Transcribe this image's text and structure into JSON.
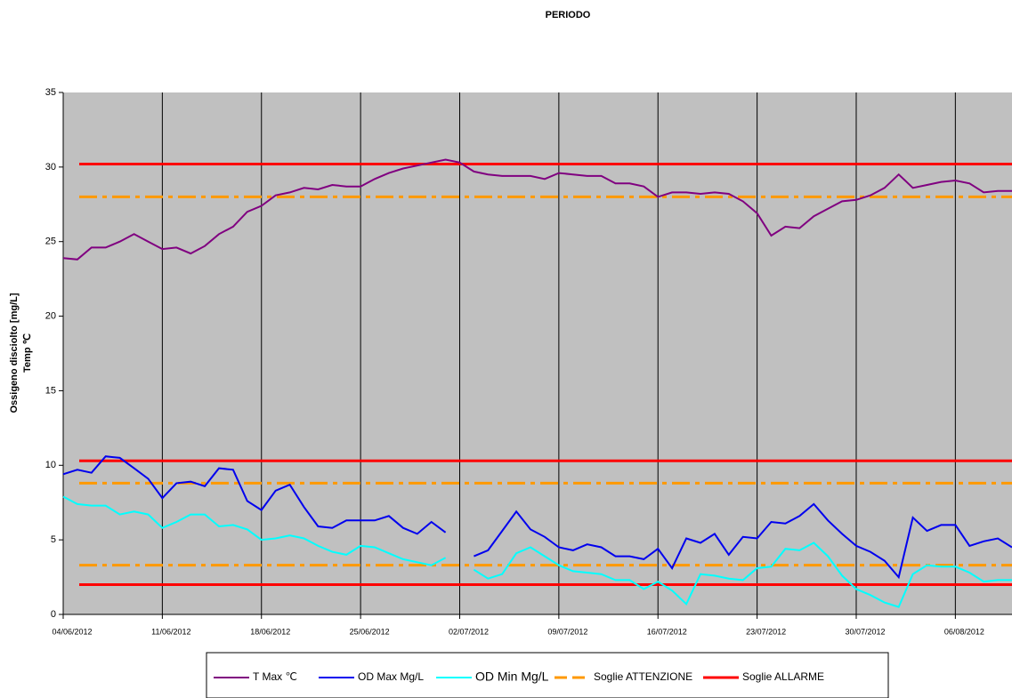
{
  "chart_data": {
    "type": "line",
    "title": "PERIODO",
    "ylabel": [
      "Ossigeno disciolto [mg/L]",
      "Temp ℃"
    ],
    "x": [
      "04/06/2012",
      "05/06/2012",
      "06/06/2012",
      "07/06/2012",
      "08/06/2012",
      "09/06/2012",
      "10/06/2012",
      "11/06/2012",
      "12/06/2012",
      "13/06/2012",
      "14/06/2012",
      "15/06/2012",
      "16/06/2012",
      "17/06/2012",
      "18/06/2012",
      "19/06/2012",
      "20/06/2012",
      "21/06/2012",
      "22/06/2012",
      "23/06/2012",
      "24/06/2012",
      "25/06/2012",
      "26/06/2012",
      "27/06/2012",
      "28/06/2012",
      "29/06/2012",
      "30/06/2012",
      "01/07/2012",
      "02/07/2012",
      "03/07/2012",
      "04/07/2012",
      "05/07/2012",
      "06/07/2012",
      "07/07/2012",
      "08/07/2012",
      "09/07/2012",
      "10/07/2012",
      "11/07/2012",
      "12/07/2012",
      "13/07/2012",
      "14/07/2012",
      "15/07/2012",
      "16/07/2012",
      "17/07/2012",
      "18/07/2012",
      "19/07/2012",
      "20/07/2012",
      "21/07/2012",
      "22/07/2012",
      "23/07/2012",
      "24/07/2012",
      "25/07/2012",
      "26/07/2012",
      "27/07/2012",
      "28/07/2012",
      "29/07/2012",
      "30/07/2012",
      "31/07/2012",
      "01/08/2012",
      "02/08/2012",
      "03/08/2012",
      "04/08/2012",
      "05/08/2012",
      "06/08/2012",
      "07/08/2012",
      "08/08/2012",
      "09/08/2012",
      "10/08/2012"
    ],
    "xlim": [
      "04/06/2012",
      "10/08/2012"
    ],
    "xticks": [
      "04/06/2012",
      "11/06/2012",
      "18/06/2012",
      "25/06/2012",
      "02/07/2012",
      "09/07/2012",
      "16/07/2012",
      "23/07/2012",
      "30/07/2012",
      "06/08/2012"
    ],
    "ylim": [
      0,
      35
    ],
    "yticks": [
      0,
      5,
      10,
      15,
      20,
      25,
      30,
      35
    ],
    "xgrid": true,
    "series": [
      {
        "name": "T Max ℃",
        "color": "#800080",
        "values": [
          23.9,
          23.8,
          24.6,
          24.6,
          25.0,
          25.5,
          25.0,
          24.5,
          24.6,
          24.2,
          24.7,
          25.5,
          26.0,
          27.0,
          27.4,
          28.1,
          28.3,
          28.6,
          28.5,
          28.8,
          28.7,
          28.7,
          29.2,
          29.6,
          29.9,
          30.1,
          30.3,
          30.5,
          30.3,
          29.7,
          29.5,
          29.4,
          29.4,
          29.4,
          29.2,
          29.6,
          29.5,
          29.4,
          29.4,
          28.9,
          28.9,
          28.7,
          28.0,
          28.3,
          28.3,
          28.2,
          28.3,
          28.2,
          27.7,
          26.9,
          25.4,
          26.0,
          25.9,
          26.7,
          27.2,
          27.7,
          27.8,
          28.1,
          28.6,
          29.5,
          28.6,
          28.8,
          29.0,
          29.1,
          28.9,
          28.3,
          28.4,
          28.4
        ]
      },
      {
        "name": "OD Max Mg/L",
        "color": "#0000ee",
        "values": [
          9.4,
          9.7,
          9.5,
          10.6,
          10.5,
          9.8,
          9.1,
          7.8,
          8.8,
          8.9,
          8.6,
          9.8,
          9.7,
          7.6,
          7.0,
          8.3,
          8.7,
          7.2,
          5.9,
          5.8,
          6.3,
          6.3,
          6.3,
          6.6,
          5.8,
          5.4,
          6.2,
          5.5,
          null,
          3.9,
          4.3,
          5.6,
          6.9,
          5.7,
          5.2,
          4.5,
          4.3,
          4.7,
          4.5,
          3.9,
          3.9,
          3.7,
          4.4,
          3.1,
          5.1,
          4.8,
          5.4,
          4.0,
          5.2,
          5.1,
          6.2,
          6.1,
          6.6,
          7.4,
          6.3,
          5.4,
          4.6,
          4.2,
          3.6,
          2.5,
          6.5,
          5.6,
          6.0,
          6.0,
          4.6,
          4.9,
          5.1,
          4.5
        ]
      },
      {
        "name": "OD Min Mg/L",
        "color": "#00ffff",
        "values": [
          7.9,
          7.4,
          7.3,
          7.3,
          6.7,
          6.9,
          6.7,
          5.8,
          6.2,
          6.7,
          6.7,
          5.9,
          6.0,
          5.7,
          5.0,
          5.1,
          5.3,
          5.1,
          4.6,
          4.2,
          4.0,
          4.6,
          4.5,
          4.1,
          3.7,
          3.5,
          3.3,
          3.8,
          null,
          3.0,
          2.4,
          2.7,
          4.1,
          4.5,
          3.9,
          3.3,
          2.9,
          2.8,
          2.7,
          2.3,
          2.3,
          1.7,
          2.2,
          1.6,
          0.7,
          2.7,
          2.6,
          2.4,
          2.3,
          3.1,
          3.2,
          4.4,
          4.3,
          4.8,
          3.9,
          2.6,
          1.7,
          1.3,
          0.8,
          0.5,
          2.7,
          3.3,
          3.2,
          3.2,
          2.8,
          2.2,
          2.3,
          2.3
        ]
      }
    ],
    "thresholds": [
      {
        "name": "Soglie ATTENZIONE",
        "color": "#ff9900",
        "dash": true,
        "levels": [
          28,
          8.8,
          3.3
        ]
      },
      {
        "name": "Soglie ALLARME",
        "color": "#ff0000",
        "dash": false,
        "levels": [
          30.2,
          10.3,
          2.0
        ]
      }
    ]
  }
}
